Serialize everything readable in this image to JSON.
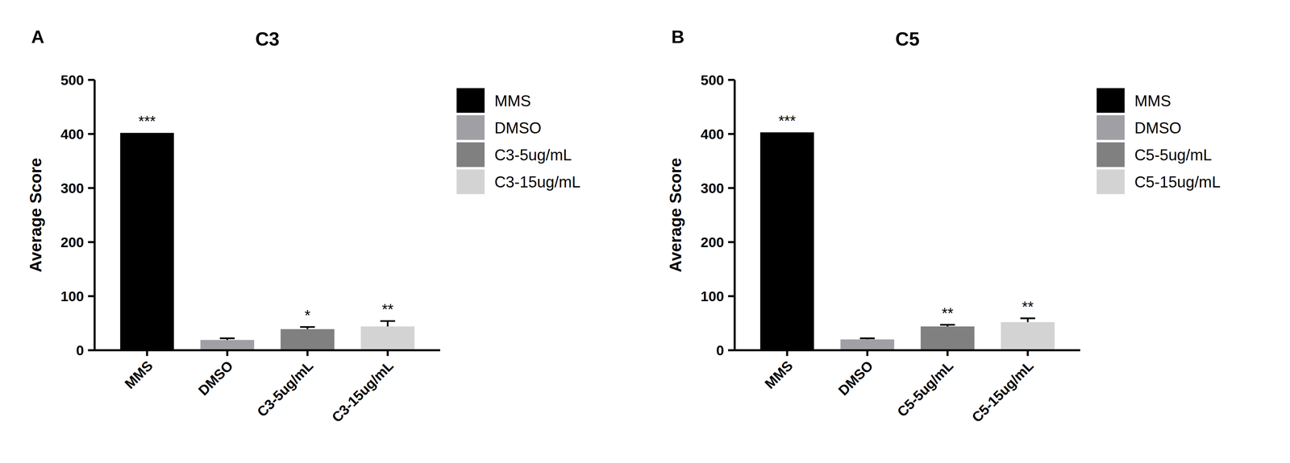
{
  "chart_data": [
    {
      "type": "bar",
      "panel_label": "A",
      "title": "C3",
      "y_label": "Average Score",
      "categories": [
        "MMS",
        "DMSO",
        "C3-5ug/mL",
        "C3-15ug/mL"
      ],
      "values": [
        402,
        19,
        39,
        44
      ],
      "errors": [
        null,
        3,
        4,
        10
      ],
      "annotations": [
        "***",
        null,
        "*",
        "**"
      ],
      "colors": [
        "#000000",
        "#a0a0a4",
        "#808080",
        "#d3d3d3"
      ],
      "ylim": [
        0,
        500
      ],
      "yticks": [
        0,
        100,
        200,
        300,
        400,
        500
      ],
      "grid": false,
      "legend": "right"
    },
    {
      "type": "bar",
      "panel_label": "B",
      "title": "C5",
      "y_label": "Average Score",
      "categories": [
        "MMS",
        "DMSO",
        "C5-5ug/mL",
        "C5-15ug/mL"
      ],
      "values": [
        403,
        20,
        44,
        52
      ],
      "errors": [
        null,
        2,
        3,
        7
      ],
      "annotations": [
        "***",
        null,
        "**",
        "**"
      ],
      "colors": [
        "#000000",
        "#a0a0a4",
        "#808080",
        "#d3d3d3"
      ],
      "ylim": [
        0,
        500
      ],
      "yticks": [
        0,
        100,
        200,
        300,
        400,
        500
      ],
      "grid": false,
      "legend": "right"
    }
  ]
}
